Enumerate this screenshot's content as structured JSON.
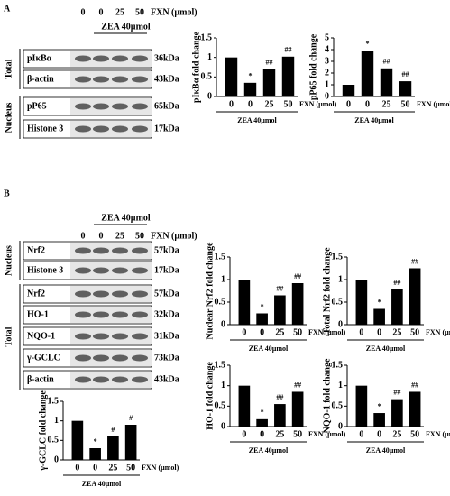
{
  "panels": [
    {
      "letter": "A",
      "treatment": "ZEA 40µmol",
      "lanes": [
        "0",
        "0",
        "25",
        "50"
      ],
      "lane_axis": "FXN (µmol)",
      "groups": [
        {
          "name": "Total",
          "rows": [
            {
              "label": "pIκBα",
              "size": "36kDa"
            },
            {
              "label": "β-actin",
              "size": "43kDa"
            }
          ]
        },
        {
          "name": "Nucleus",
          "rows": [
            {
              "label": "pP65",
              "size": "65kDa"
            },
            {
              "label": "Histone 3",
              "size": "17kDa"
            }
          ]
        }
      ]
    },
    {
      "letter": "B",
      "treatment": "ZEA 40µmol",
      "lanes": [
        "0",
        "0",
        "25",
        "50"
      ],
      "lane_axis": "FXN (µmol)",
      "groups": [
        {
          "name": "Nucleus",
          "rows": [
            {
              "label": "Nrf2",
              "size": "57kDa"
            },
            {
              "label": "Histone 3",
              "size": "17kDa"
            }
          ]
        },
        {
          "name": "Total",
          "rows": [
            {
              "label": "Nrf2",
              "size": "57kDa"
            },
            {
              "label": "HO-1",
              "size": "32kDa"
            },
            {
              "label": "NQO-1",
              "size": "31kDa"
            },
            {
              "label": "γ-GCLC",
              "size": "73kDa"
            },
            {
              "label": "β-actin",
              "size": "43kDa"
            }
          ]
        }
      ]
    }
  ],
  "chart_data": [
    {
      "type": "bar",
      "ylabel": "pIκBα fold change",
      "categories": [
        "0",
        "0",
        "25",
        "50"
      ],
      "xlabel": "FXN (µmol)",
      "group_label": "ZEA 40µmol",
      "values": [
        1,
        0.35,
        0.7,
        1.02
      ],
      "annotations": [
        null,
        "*",
        "##",
        "##"
      ],
      "color": "#000000",
      "ylim": [
        0,
        1.5
      ],
      "yticks": [
        0,
        0.5,
        1,
        1.5
      ]
    },
    {
      "type": "bar",
      "ylabel": "pP65 fold change",
      "categories": [
        "0",
        "0",
        "25",
        "50"
      ],
      "xlabel": "FXN (µmol)",
      "group_label": "ZEA 40µmol",
      "values": [
        1,
        3.9,
        2.4,
        1.3
      ],
      "annotations": [
        null,
        "*",
        "##",
        "##"
      ],
      "color": "#000000",
      "ylim": [
        0,
        5
      ],
      "yticks": [
        0,
        1,
        2,
        3,
        4,
        5
      ]
    },
    {
      "type": "bar",
      "ylabel": "Nuclear Nrf2 fold change",
      "categories": [
        "0",
        "0",
        "25",
        "50"
      ],
      "xlabel": "FXN (µmol)",
      "group_label": "ZEA 40µmol",
      "values": [
        1,
        0.25,
        0.65,
        0.92
      ],
      "annotations": [
        null,
        "*",
        "##",
        "##"
      ],
      "color": "#000000",
      "ylim": [
        0,
        1.5
      ],
      "yticks": [
        0,
        0.5,
        1,
        1.5
      ]
    },
    {
      "type": "bar",
      "ylabel": "Total Nrf2 fold change",
      "categories": [
        "0",
        "0",
        "25",
        "50"
      ],
      "xlabel": "FXN (µmol)",
      "group_label": "ZEA 40µmol",
      "values": [
        1,
        0.35,
        0.78,
        1.25
      ],
      "annotations": [
        null,
        "*",
        "##",
        "##"
      ],
      "color": "#000000",
      "ylim": [
        0,
        1.5
      ],
      "yticks": [
        0,
        0.5,
        1,
        1.5
      ]
    },
    {
      "type": "bar",
      "ylabel": "HO-1 fold change",
      "categories": [
        "0",
        "0",
        "25",
        "50"
      ],
      "xlabel": "FXN (µmol)",
      "group_label": "ZEA 40µmol",
      "values": [
        1,
        0.18,
        0.55,
        0.85
      ],
      "annotations": [
        null,
        "*",
        "##",
        "##"
      ],
      "color": "#000000",
      "ylim": [
        0,
        1.5
      ],
      "yticks": [
        0,
        0.5,
        1,
        1.5
      ]
    },
    {
      "type": "bar",
      "ylabel": "NQO-1 fold change",
      "categories": [
        "0",
        "0",
        "25",
        "50"
      ],
      "xlabel": "FXN (µmol)",
      "group_label": "ZEA 40µmol",
      "values": [
        1,
        0.33,
        0.67,
        0.85
      ],
      "annotations": [
        null,
        "*",
        "##",
        "##"
      ],
      "color": "#000000",
      "ylim": [
        0,
        1.5
      ],
      "yticks": [
        0,
        0.5,
        1,
        1.5
      ]
    },
    {
      "type": "bar",
      "ylabel": "γ-GCLC fold change",
      "categories": [
        "0",
        "0",
        "25",
        "50"
      ],
      "xlabel": "FXN (µmol)",
      "group_label": "ZEA 40µmol",
      "values": [
        1,
        0.3,
        0.6,
        0.9
      ],
      "annotations": [
        null,
        "*",
        "#",
        "#"
      ],
      "color": "#000000",
      "ylim": [
        0,
        1.5
      ],
      "yticks": [
        0,
        0.5,
        1,
        1.5
      ]
    }
  ]
}
